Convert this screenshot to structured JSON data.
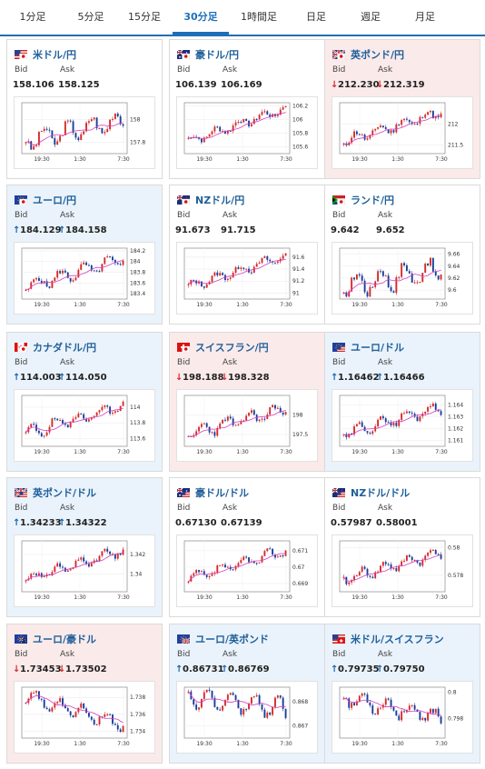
{
  "tabs": [
    "1分足",
    "5分足",
    "15分足",
    "30分足",
    "1時間足",
    "日足",
    "週足",
    "月足"
  ],
  "active_tab": "30分足",
  "labels": {
    "bid": "Bid",
    "ask": "Ask"
  },
  "colors": {
    "up_candle": "#d42a2a",
    "down_candle": "#1a3d9a",
    "ma_line": "#d43ec0",
    "trend_line": "#1e9ad0",
    "up_arrow": "#1a63b0",
    "down_arrow": "#d42a2a"
  },
  "pairs": [
    {
      "name": "米ドル/円",
      "flags": [
        "us",
        "jp"
      ],
      "state": "none",
      "bid": "158.106",
      "ask": "158.125",
      "bid_dir": "",
      "ask_dir": "",
      "chart_data": {
        "type": "candlestick",
        "x_ticks": [
          "19:30",
          "1:30",
          "7:30"
        ],
        "y_ticks": [
          "158",
          "157.8"
        ],
        "ylim": [
          157.7,
          158.15
        ]
      }
    },
    {
      "name": "豪ドル/円",
      "flags": [
        "au",
        "jp"
      ],
      "state": "none",
      "bid": "106.139",
      "ask": "106.169",
      "bid_dir": "",
      "ask_dir": "",
      "chart_data": {
        "type": "candlestick",
        "x_ticks": [
          "19:30",
          "1:30",
          "7:30"
        ],
        "y_ticks": [
          "106.2",
          "106",
          "105.8",
          "105.6"
        ],
        "ylim": [
          105.5,
          106.25
        ]
      }
    },
    {
      "name": "英ポンド/円",
      "flags": [
        "gb",
        "jp"
      ],
      "state": "down",
      "bid": "212.230",
      "ask": "212.319",
      "bid_dir": "down",
      "ask_dir": "down",
      "chart_data": {
        "type": "candlestick",
        "x_ticks": [
          "19:30",
          "1:30",
          "7:30"
        ],
        "y_ticks": [
          "212",
          "211.5"
        ],
        "ylim": [
          211.3,
          212.5
        ]
      }
    },
    {
      "name": "ユーロ/円",
      "flags": [
        "eu",
        "jp"
      ],
      "state": "up",
      "bid": "184.129",
      "ask": "184.158",
      "bid_dir": "up",
      "ask_dir": "up",
      "chart_data": {
        "type": "candlestick",
        "x_ticks": [
          "19:30",
          "1:30",
          "7:30"
        ],
        "y_ticks": [
          "184.2",
          "184",
          "183.8",
          "183.6",
          "183.4"
        ],
        "ylim": [
          183.3,
          184.25
        ]
      }
    },
    {
      "name": "NZドル/円",
      "flags": [
        "nz",
        "jp"
      ],
      "state": "none",
      "bid": "91.673",
      "ask": "91.715",
      "bid_dir": "",
      "ask_dir": "",
      "chart_data": {
        "type": "candlestick",
        "x_ticks": [
          "19:30",
          "1:30",
          "7:30"
        ],
        "y_ticks": [
          "91.6",
          "91.4",
          "91.2",
          "91"
        ],
        "ylim": [
          90.9,
          91.75
        ]
      }
    },
    {
      "name": "ランド/円",
      "flags": [
        "za",
        "jp"
      ],
      "state": "none",
      "bid": "9.642",
      "ask": "9.652",
      "bid_dir": "",
      "ask_dir": "",
      "chart_data": {
        "type": "candlestick",
        "x_ticks": [
          "19:30",
          "1:30",
          "7:30"
        ],
        "y_ticks": [
          "9.66",
          "9.64",
          "9.62",
          "9.6"
        ],
        "ylim": [
          9.585,
          9.67
        ]
      }
    },
    {
      "name": "カナダドル/円",
      "flags": [
        "ca",
        "jp"
      ],
      "state": "up",
      "bid": "114.003",
      "ask": "114.050",
      "bid_dir": "up",
      "ask_dir": "up",
      "chart_data": {
        "type": "candlestick",
        "x_ticks": [
          "19:30",
          "1:30",
          "7:30"
        ],
        "y_ticks": [
          "114",
          "113.8",
          "113.6"
        ],
        "ylim": [
          113.5,
          114.15
        ]
      }
    },
    {
      "name": "スイスフラン/円",
      "flags": [
        "ch",
        "jp"
      ],
      "state": "down",
      "bid": "198.188",
      "ask": "198.328",
      "bid_dir": "down",
      "ask_dir": "down",
      "chart_data": {
        "type": "candlestick",
        "x_ticks": [
          "19:30",
          "1:30",
          "7:30"
        ],
        "y_ticks": [
          "198",
          "197.5"
        ],
        "ylim": [
          197.2,
          198.5
        ]
      }
    },
    {
      "name": "ユーロ/ドル",
      "flags": [
        "eu",
        "us"
      ],
      "state": "up",
      "bid": "1.16462",
      "ask": "1.16466",
      "bid_dir": "up",
      "ask_dir": "up",
      "chart_data": {
        "type": "candlestick",
        "x_ticks": [
          "19:30",
          "1:30",
          "7:30"
        ],
        "y_ticks": [
          "1.164",
          "1.163",
          "1.162",
          "1.161"
        ],
        "ylim": [
          1.1605,
          1.1648
        ]
      }
    },
    {
      "name": "英ポンド/ドル",
      "flags": [
        "gb",
        "us"
      ],
      "state": "up",
      "bid": "1.34233",
      "ask": "1.34322",
      "bid_dir": "up",
      "ask_dir": "up",
      "chart_data": {
        "type": "candlestick",
        "x_ticks": [
          "19:30",
          "1:30",
          "7:30"
        ],
        "y_ticks": [
          "1.342",
          "1.34"
        ],
        "ylim": [
          1.3382,
          1.3434
        ]
      }
    },
    {
      "name": "豪ドル/ドル",
      "flags": [
        "au",
        "us"
      ],
      "state": "none",
      "bid": "0.67130",
      "ask": "0.67139",
      "bid_dir": "",
      "ask_dir": "",
      "chart_data": {
        "type": "candlestick",
        "x_ticks": [
          "19:30",
          "1:30",
          "7:30"
        ],
        "y_ticks": [
          "0.671",
          "0.67",
          "0.669"
        ],
        "ylim": [
          0.6685,
          0.6716
        ]
      }
    },
    {
      "name": "NZドル/ドル",
      "flags": [
        "nz",
        "us"
      ],
      "state": "none",
      "bid": "0.57987",
      "ask": "0.58001",
      "bid_dir": "",
      "ask_dir": "",
      "chart_data": {
        "type": "candlestick",
        "x_ticks": [
          "19:30",
          "1:30",
          "7:30"
        ],
        "y_ticks": [
          "0.58",
          "0.578"
        ],
        "ylim": [
          0.5768,
          0.5805
        ]
      }
    },
    {
      "name": "ユーロ/豪ドル",
      "flags": [
        "eu",
        "au"
      ],
      "state": "down",
      "bid": "1.73453",
      "ask": "1.73502",
      "bid_dir": "down",
      "ask_dir": "down",
      "chart_data": {
        "type": "candlestick",
        "x_ticks": [
          "19:30",
          "1:30",
          "7:30"
        ],
        "y_ticks": [
          "1.738",
          "1.736",
          "1.734"
        ],
        "ylim": [
          1.7332,
          1.7392
        ]
      }
    },
    {
      "name": "ユーロ/英ポンド",
      "flags": [
        "eu",
        "gb"
      ],
      "state": "up",
      "bid": "0.86731",
      "ask": "0.86769",
      "bid_dir": "up",
      "ask_dir": "up",
      "chart_data": {
        "type": "candlestick",
        "x_ticks": [
          "19:30",
          "1:30",
          "7:30"
        ],
        "y_ticks": [
          "0.868",
          "0.867"
        ],
        "ylim": [
          0.8665,
          0.8686
        ]
      }
    },
    {
      "name": "米ドル/スイスフラン",
      "flags": [
        "us",
        "ch"
      ],
      "state": "up",
      "bid": "0.79735",
      "ask": "0.79750",
      "bid_dir": "up",
      "ask_dir": "up",
      "chart_data": {
        "type": "candlestick",
        "x_ticks": [
          "19:30",
          "1:30",
          "7:30"
        ],
        "y_ticks": [
          "0.8",
          "0.798"
        ],
        "ylim": [
          0.7965,
          0.8004
        ]
      }
    }
  ]
}
